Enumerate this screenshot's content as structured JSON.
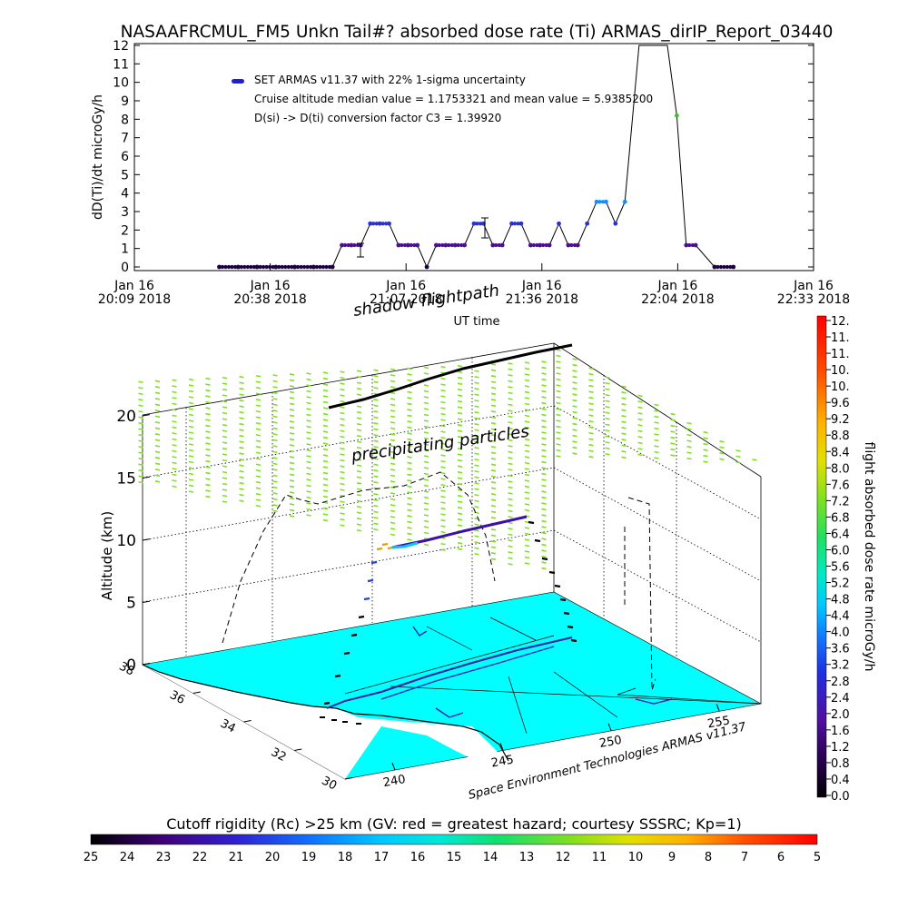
{
  "chart_data": [
    {
      "type": "scatter",
      "title": "NASAAFRCMUL_FM5 Unkn Tail#? absorbed dose rate (Ti) ARMAS_dirIP_Report_03440",
      "ylabel": "dD(Ti)/dt microGy/h",
      "xlabel": "UT time",
      "ylim": [
        0,
        12
      ],
      "y_ticks": [
        "0",
        "1",
        "2",
        "3",
        "4",
        "5",
        "6",
        "7",
        "8",
        "9",
        "10",
        "11",
        "12"
      ],
      "x_ticks": [
        {
          "day": "Jan 16",
          "time": "20:09 2018"
        },
        {
          "day": "Jan 16",
          "time": "20:38 2018"
        },
        {
          "day": "Jan 16",
          "time": "21:07 2018"
        },
        {
          "day": "Jan 16",
          "time": "21:36 2018"
        },
        {
          "day": "Jan 16",
          "time": "22:04 2018"
        },
        {
          "day": "Jan 16",
          "time": "22:33 2018"
        }
      ],
      "legend": [
        "SET ARMAS v11.37 with 22% 1-sigma uncertainty",
        "Cruise altitude median value = 1.1753321 and mean value = 5.9385200",
        "D(si) -> D(ti) conversion factor C3 = 1.39920"
      ],
      "series": [
        {
          "name": "SET ARMAS v11.37 with 22% 1-sigma uncertainty",
          "x": [
            "20:27",
            "20:31",
            "20:35",
            "20:39",
            "20:43",
            "20:47",
            "20:51",
            "20:53",
            "20:55",
            "20:57",
            "20:59",
            "21:01",
            "21:03",
            "21:05",
            "21:07",
            "21:09",
            "21:11",
            "21:13",
            "21:15",
            "21:17",
            "21:19",
            "21:21",
            "21:23",
            "21:25",
            "21:27",
            "21:29",
            "21:31",
            "21:33",
            "21:35",
            "21:37",
            "21:39",
            "21:41",
            "21:43",
            "21:45",
            "21:47",
            "21:49",
            "21:51",
            "21:53",
            "21:56",
            "21:58",
            "22:00",
            "22:02",
            "22:04",
            "22:06",
            "22:08",
            "22:12",
            "22:16"
          ],
          "y": [
            0,
            0,
            0,
            0,
            0,
            0,
            0,
            1.18,
            1.18,
            1.18,
            2.35,
            2.35,
            2.35,
            1.18,
            1.18,
            1.18,
            0,
            1.18,
            1.18,
            1.18,
            1.18,
            2.35,
            2.35,
            1.18,
            1.18,
            2.35,
            2.35,
            1.18,
            1.18,
            1.18,
            2.35,
            1.18,
            1.18,
            2.35,
            3.53,
            3.53,
            2.35,
            3.53,
            12,
            12,
            12,
            12,
            8.2,
            1.18,
            1.18,
            0,
            0
          ]
        }
      ]
    },
    {
      "type": "scatter",
      "subtype": "3d-flight-path",
      "zlabel": "Altitude (km)",
      "z_ticks": [
        "0",
        "5",
        "10",
        "15",
        "20"
      ],
      "lat_ticks": [
        "30",
        "32",
        "34",
        "36",
        "38"
      ],
      "lon_ticks": [
        "240",
        "245",
        "250",
        "255"
      ],
      "annotations": [
        "shadow flightpath",
        "precipitating particles"
      ],
      "credit": "Space Environment Technologies ARMAS v11.37",
      "colorbar": {
        "label": "flight absorbed dose rate microGy/h",
        "ticks": [
          "12.",
          "11.",
          "11.",
          "10.",
          "10.",
          "9.6",
          "9.2",
          "8.8",
          "8.4",
          "8.0",
          "7.6",
          "7.2",
          "6.8",
          "6.4",
          "6.0",
          "5.6",
          "5.2",
          "4.8",
          "4.4",
          "4.0",
          "3.6",
          "3.2",
          "2.8",
          "2.4",
          "2.0",
          "1.6",
          "1.2",
          "0.8",
          "0.4",
          "0.0"
        ]
      },
      "rigidity_bar": {
        "label": "Cutoff rigidity (Rc) >25 km (GV: red = greatest hazard; courtesy SSSRC; Kp=1)",
        "ticks": [
          "25",
          "24",
          "23",
          "22",
          "21",
          "20",
          "19",
          "18",
          "17",
          "16",
          "15",
          "14",
          "13",
          "12",
          "11",
          "10",
          "9",
          "8",
          "7",
          "6",
          "5"
        ]
      },
      "colors": {
        "ground": "#00ffff",
        "path_cruise": "#3a10a8",
        "path_low": "#000000",
        "precip": "#80e020",
        "error_bar": "#000000"
      }
    }
  ]
}
